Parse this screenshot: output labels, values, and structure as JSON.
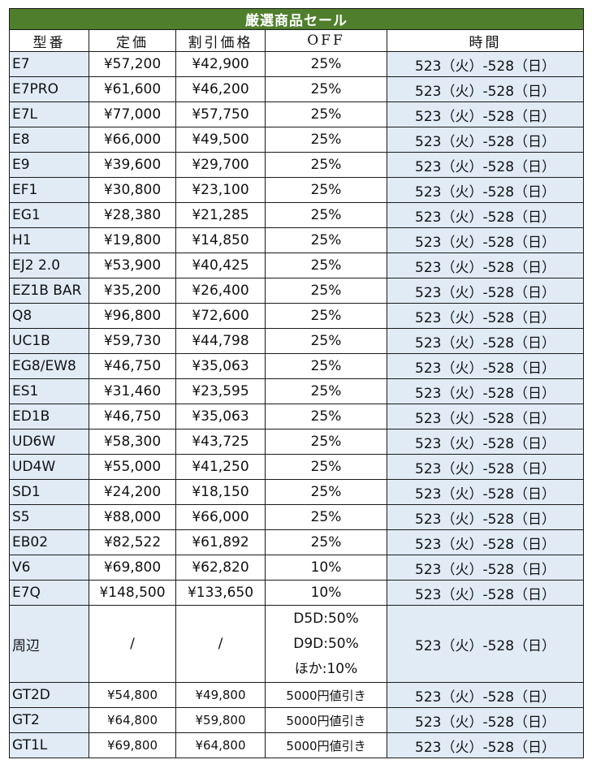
{
  "title": "厳選商品セール",
  "headers": {
    "model": "型番",
    "price": "定価",
    "sale": "割引価格",
    "off": "OFF",
    "period": "時間"
  },
  "rows": [
    {
      "model": "E7",
      "price": "¥57,200",
      "sale": "¥42,900",
      "off": "25%",
      "period": "523（火）-528（日）"
    },
    {
      "model": "E7PRO",
      "price": "¥61,600",
      "sale": "¥46,200",
      "off": "25%",
      "period": "523（火）-528（日）"
    },
    {
      "model": "E7L",
      "price": "¥77,000",
      "sale": "¥57,750",
      "off": "25%",
      "period": "523（火）-528（日）"
    },
    {
      "model": "E8",
      "price": "¥66,000",
      "sale": "¥49,500",
      "off": "25%",
      "period": "523（火）-528（日）"
    },
    {
      "model": "E9",
      "price": "¥39,600",
      "sale": "¥29,700",
      "off": "25%",
      "period": "523（火）-528（日）"
    },
    {
      "model": "EF1",
      "price": "¥30,800",
      "sale": "¥23,100",
      "off": "25%",
      "period": "523（火）-528（日）"
    },
    {
      "model": "EG1",
      "price": "¥28,380",
      "sale": "¥21,285",
      "off": "25%",
      "period": "523（火）-528（日）"
    },
    {
      "model": "H1",
      "price": "¥19,800",
      "sale": "¥14,850",
      "off": "25%",
      "period": "523（火）-528（日）"
    },
    {
      "model": "EJ2 2.0",
      "price": "¥53,900",
      "sale": "¥40,425",
      "off": "25%",
      "period": "523（火）-528（日）"
    },
    {
      "model": "EZ1B BAR",
      "price": "¥35,200",
      "sale": "¥26,400",
      "off": "25%",
      "period": "523（火）-528（日）"
    },
    {
      "model": "Q8",
      "price": "¥96,800",
      "sale": "¥72,600",
      "off": "25%",
      "period": "523（火）-528（日）"
    },
    {
      "model": "UC1B",
      "price": "¥59,730",
      "sale": "¥44,798",
      "off": "25%",
      "period": "523（火）-528（日）"
    },
    {
      "model": "EG8/EW8",
      "price": "¥46,750",
      "sale": "¥35,063",
      "off": "25%",
      "period": "523（火）-528（日）"
    },
    {
      "model": "ES1",
      "price": "¥31,460",
      "sale": "¥23,595",
      "off": "25%",
      "period": "523（火）-528（日）"
    },
    {
      "model": "ED1B",
      "price": "¥46,750",
      "sale": "¥35,063",
      "off": "25%",
      "period": "523（火）-528（日）"
    },
    {
      "model": "UD6W",
      "price": "¥58,300",
      "sale": "¥43,725",
      "off": "25%",
      "period": "523（火）-528（日）"
    },
    {
      "model": "UD4W",
      "price": "¥55,000",
      "sale": "¥41,250",
      "off": "25%",
      "period": "523（火）-528（日）"
    },
    {
      "model": "SD1",
      "price": "¥24,200",
      "sale": "¥18,150",
      "off": "25%",
      "period": "523（火）-528（日）"
    },
    {
      "model": "S5",
      "price": "¥88,000",
      "sale": "¥66,000",
      "off": "25%",
      "period": "523（火）-528（日）"
    },
    {
      "model": "EB02",
      "price": "¥82,522",
      "sale": "¥61,892",
      "off": "25%",
      "period": "523（火）-528（日）"
    },
    {
      "model": "V6",
      "price": "¥69,800",
      "sale": "¥62,820",
      "off": "10%",
      "period": "523（火）-528（日）"
    },
    {
      "model": "E7Q",
      "price": "¥148,500",
      "sale": "¥133,650",
      "off": "10%",
      "period": "523（火）-528（日）"
    }
  ],
  "accessories": {
    "model": "周辺",
    "price": "/",
    "sale": "/",
    "off_lines": [
      "D5D:50%",
      "D9D:50%",
      "ほか:10%"
    ],
    "period": "523（火）-528（日）"
  },
  "gt_rows": [
    {
      "model": "GT2D",
      "price": "¥54,800",
      "sale": "¥49,800",
      "off": "5000円値引き",
      "period": "523（火）-528（日）"
    },
    {
      "model": "GT2",
      "price": "¥64,800",
      "sale": "¥59,800",
      "off": "5000円値引き",
      "period": "523（火）-528（日）"
    },
    {
      "model": "GT1L",
      "price": "¥69,800",
      "sale": "¥64,800",
      "off": "5000円値引き",
      "period": "523（火）-528（日）"
    }
  ],
  "colors": {
    "title_bg": "#4f7f2c",
    "title_text": "#ffffff",
    "shaded_cell": "#e0ebf6",
    "border": "#1a1a1a"
  }
}
